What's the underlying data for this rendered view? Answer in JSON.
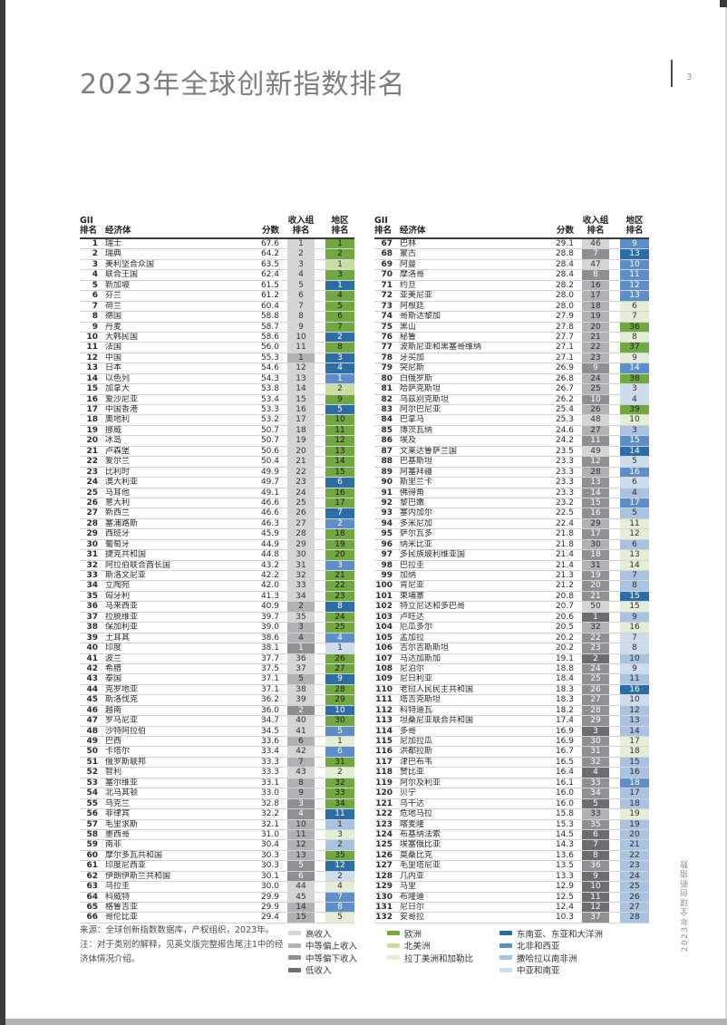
{
  "page": {
    "title": "2023年全球创新指数排名",
    "page_number": "3",
    "side_label": "2023年全球创新指数"
  },
  "table_headers": {
    "rank_line1": "GII",
    "rank_line2": "排名",
    "economy": "经济体",
    "score": "分数",
    "income_line1": "收入组",
    "income_line2": "排名",
    "region_line1": "地区",
    "region_line2": "排名"
  },
  "income_groups": {
    "high": {
      "label": "高收入",
      "color": "#d5d5d7",
      "text": "#333333"
    },
    "upper_middle": {
      "label": "中等偏上收入",
      "color": "#b1b1b5",
      "text": "#2e2e2e"
    },
    "lower_middle": {
      "label": "中等偏下收入",
      "color": "#8e8e94",
      "text": "#ffffff"
    },
    "low": {
      "label": "低收入",
      "color": "#6c6c73",
      "text": "#ffffff"
    }
  },
  "regions": {
    "EUR": {
      "label": "欧洲",
      "color": "#72a840",
      "text": "#1c1c1c"
    },
    "NAC": {
      "label": "北美洲",
      "color": "#c7dda3",
      "text": "#2e2e2e"
    },
    "LCN": {
      "label": "拉丁美洲和加勒比",
      "color": "#e3eed4",
      "text": "#2e2e2e"
    },
    "SEAO": {
      "label": "东南亚、东亚和大洋洲",
      "color": "#2d6da7",
      "text": "#ffffff"
    },
    "NAWA": {
      "label": "北非和西亚",
      "color": "#5d8ec7",
      "text": "#ffffff"
    },
    "SSF": {
      "label": "撒哈拉以南非洲",
      "color": "#a8c2e0",
      "text": "#2e2e2e"
    },
    "CSA": {
      "label": "中亚和南亚",
      "color": "#cfdcee",
      "text": "#2e2e2e"
    }
  },
  "legend": {
    "income_order": [
      "high",
      "upper_middle",
      "lower_middle",
      "low"
    ],
    "green_order": [
      "EUR",
      "NAC",
      "LCN"
    ],
    "blue_order": [
      "SEAO",
      "NAWA",
      "SSF",
      "CSA"
    ]
  },
  "footer": {
    "source": "来源：全球创新指数数据库，产权组织，2023年。",
    "note": "注：对于类别的解释，见英文版完整报告尾注1中的经济体情况介绍。"
  },
  "rows": [
    [
      1,
      "瑞士",
      "67.6",
      1,
      "high",
      1,
      "EUR"
    ],
    [
      2,
      "瑞典",
      "64.2",
      2,
      "high",
      2,
      "EUR"
    ],
    [
      3,
      "美利坚合众国",
      "63.5",
      3,
      "high",
      1,
      "NAC"
    ],
    [
      4,
      "联合王国",
      "62.4",
      4,
      "high",
      3,
      "EUR"
    ],
    [
      5,
      "新加坡",
      "61.5",
      5,
      "high",
      1,
      "SEAO"
    ],
    [
      6,
      "芬兰",
      "61.2",
      6,
      "high",
      4,
      "EUR"
    ],
    [
      7,
      "荷兰",
      "60.4",
      7,
      "high",
      5,
      "EUR"
    ],
    [
      8,
      "德国",
      "58.8",
      8,
      "high",
      6,
      "EUR"
    ],
    [
      9,
      "丹麦",
      "58.7",
      9,
      "high",
      7,
      "EUR"
    ],
    [
      10,
      "大韩民国",
      "58.6",
      10,
      "high",
      2,
      "SEAO"
    ],
    [
      11,
      "法国",
      "56.0",
      11,
      "high",
      8,
      "EUR"
    ],
    [
      12,
      "中国",
      "55.3",
      1,
      "upper_middle",
      3,
      "SEAO"
    ],
    [
      13,
      "日本",
      "54.6",
      12,
      "high",
      4,
      "SEAO"
    ],
    [
      14,
      "以色列",
      "54.3",
      13,
      "high",
      1,
      "NAWA"
    ],
    [
      15,
      "加拿大",
      "53.8",
      14,
      "high",
      2,
      "NAC"
    ],
    [
      16,
      "爱沙尼亚",
      "53.4",
      15,
      "high",
      9,
      "EUR"
    ],
    [
      17,
      "中国香港",
      "53.3",
      16,
      "high",
      5,
      "SEAO"
    ],
    [
      18,
      "奥地利",
      "53.2",
      17,
      "high",
      10,
      "EUR"
    ],
    [
      19,
      "挪威",
      "50.7",
      18,
      "high",
      11,
      "EUR"
    ],
    [
      20,
      "冰岛",
      "50.7",
      19,
      "high",
      12,
      "EUR"
    ],
    [
      21,
      "卢森堡",
      "50.6",
      20,
      "high",
      13,
      "EUR"
    ],
    [
      22,
      "爱尔兰",
      "50.4",
      21,
      "high",
      14,
      "EUR"
    ],
    [
      23,
      "比利时",
      "49.9",
      22,
      "high",
      15,
      "EUR"
    ],
    [
      24,
      "澳大利亚",
      "49.7",
      23,
      "high",
      6,
      "SEAO"
    ],
    [
      25,
      "马耳他",
      "49.1",
      24,
      "high",
      16,
      "EUR"
    ],
    [
      26,
      "意大利",
      "46.6",
      25,
      "high",
      17,
      "EUR"
    ],
    [
      27,
      "新西兰",
      "46.6",
      26,
      "high",
      7,
      "SEAO"
    ],
    [
      28,
      "塞浦路斯",
      "46.3",
      27,
      "high",
      2,
      "NAWA"
    ],
    [
      29,
      "西班牙",
      "45.9",
      28,
      "high",
      18,
      "EUR"
    ],
    [
      30,
      "葡萄牙",
      "44.9",
      29,
      "high",
      19,
      "EUR"
    ],
    [
      31,
      "捷克共和国",
      "44.8",
      30,
      "high",
      20,
      "EUR"
    ],
    [
      32,
      "阿拉伯联合酋长国",
      "43.2",
      31,
      "high",
      3,
      "NAWA"
    ],
    [
      33,
      "斯洛文尼亚",
      "42.2",
      32,
      "high",
      21,
      "EUR"
    ],
    [
      34,
      "立陶宛",
      "42.0",
      33,
      "high",
      22,
      "EUR"
    ],
    [
      35,
      "匈牙利",
      "41.3",
      34,
      "high",
      23,
      "EUR"
    ],
    [
      36,
      "马来西亚",
      "40.9",
      2,
      "upper_middle",
      8,
      "SEAO"
    ],
    [
      37,
      "拉脱维亚",
      "39.7",
      35,
      "high",
      24,
      "EUR"
    ],
    [
      38,
      "保加利亚",
      "39.0",
      3,
      "upper_middle",
      25,
      "EUR"
    ],
    [
      39,
      "土耳其",
      "38.6",
      4,
      "upper_middle",
      4,
      "NAWA"
    ],
    [
      40,
      "印度",
      "38.1",
      1,
      "lower_middle",
      1,
      "CSA"
    ],
    [
      41,
      "波兰",
      "37.7",
      36,
      "high",
      26,
      "EUR"
    ],
    [
      42,
      "希腊",
      "37.5",
      37,
      "high",
      27,
      "EUR"
    ],
    [
      43,
      "泰国",
      "37.1",
      5,
      "upper_middle",
      9,
      "SEAO"
    ],
    [
      44,
      "克罗地亚",
      "37.1",
      38,
      "high",
      28,
      "EUR"
    ],
    [
      45,
      "斯洛伐克",
      "36.2",
      39,
      "high",
      29,
      "EUR"
    ],
    [
      46,
      "越南",
      "36.0",
      2,
      "lower_middle",
      10,
      "SEAO"
    ],
    [
      47,
      "罗马尼亚",
      "34.7",
      40,
      "high",
      30,
      "EUR"
    ],
    [
      48,
      "沙特阿拉伯",
      "34.5",
      41,
      "high",
      5,
      "NAWA"
    ],
    [
      49,
      "巴西",
      "33.6",
      6,
      "upper_middle",
      1,
      "LCN"
    ],
    [
      50,
      "卡塔尔",
      "33.4",
      42,
      "high",
      6,
      "NAWA"
    ],
    [
      51,
      "俄罗斯联邦",
      "33.3",
      7,
      "upper_middle",
      31,
      "EUR"
    ],
    [
      52,
      "智利",
      "33.3",
      43,
      "high",
      2,
      "LCN"
    ],
    [
      53,
      "塞尔维亚",
      "33.1",
      8,
      "upper_middle",
      32,
      "EUR"
    ],
    [
      54,
      "北马其顿",
      "33.0",
      9,
      "upper_middle",
      33,
      "EUR"
    ],
    [
      55,
      "乌克兰",
      "32.8",
      3,
      "lower_middle",
      34,
      "EUR"
    ],
    [
      56,
      "菲律宾",
      "32.2",
      4,
      "lower_middle",
      11,
      "SEAO"
    ],
    [
      57,
      "毛里求斯",
      "32.1",
      10,
      "upper_middle",
      1,
      "SSF"
    ],
    [
      58,
      "墨西哥",
      "31.0",
      11,
      "upper_middle",
      3,
      "LCN"
    ],
    [
      59,
      "南非",
      "30.4",
      12,
      "upper_middle",
      2,
      "SSF"
    ],
    [
      60,
      "摩尔多瓦共和国",
      "30.3",
      13,
      "upper_middle",
      35,
      "EUR"
    ],
    [
      61,
      "印度尼西亚",
      "30.3",
      5,
      "lower_middle",
      12,
      "SEAO"
    ],
    [
      62,
      "伊朗伊斯兰共和国",
      "30.1",
      6,
      "lower_middle",
      2,
      "CSA"
    ],
    [
      63,
      "乌拉圭",
      "30.0",
      44,
      "high",
      4,
      "LCN"
    ],
    [
      64,
      "科威特",
      "29.9",
      45,
      "high",
      7,
      "NAWA"
    ],
    [
      65,
      "格鲁吉亚",
      "29.9",
      14,
      "upper_middle",
      8,
      "NAWA"
    ],
    [
      66,
      "哥伦比亚",
      "29.4",
      15,
      "upper_middle",
      5,
      "LCN"
    ],
    [
      67,
      "巴林",
      "29.1",
      46,
      "high",
      9,
      "NAWA"
    ],
    [
      68,
      "蒙古",
      "28.8",
      7,
      "lower_middle",
      13,
      "SEAO"
    ],
    [
      69,
      "阿曼",
      "28.4",
      47,
      "high",
      10,
      "NAWA"
    ],
    [
      70,
      "摩洛哥",
      "28.4",
      8,
      "lower_middle",
      11,
      "NAWA"
    ],
    [
      71,
      "约旦",
      "28.2",
      16,
      "upper_middle",
      12,
      "NAWA"
    ],
    [
      72,
      "亚美尼亚",
      "28.0",
      17,
      "upper_middle",
      13,
      "NAWA"
    ],
    [
      73,
      "阿根廷",
      "28.0",
      18,
      "upper_middle",
      6,
      "LCN"
    ],
    [
      74,
      "哥斯达黎加",
      "27.9",
      19,
      "upper_middle",
      7,
      "LCN"
    ],
    [
      75,
      "黑山",
      "27.8",
      20,
      "upper_middle",
      36,
      "EUR"
    ],
    [
      76,
      "秘鲁",
      "27.7",
      21,
      "upper_middle",
      8,
      "LCN"
    ],
    [
      77,
      "波斯尼亚和黑塞哥维纳",
      "27.1",
      22,
      "upper_middle",
      37,
      "EUR"
    ],
    [
      78,
      "牙买加",
      "27.1",
      23,
      "upper_middle",
      9,
      "LCN"
    ],
    [
      79,
      "突尼斯",
      "26.9",
      9,
      "lower_middle",
      14,
      "NAWA"
    ],
    [
      80,
      "白俄罗斯",
      "26.8",
      24,
      "upper_middle",
      38,
      "EUR"
    ],
    [
      81,
      "哈萨克斯坦",
      "26.7",
      25,
      "upper_middle",
      3,
      "CSA"
    ],
    [
      82,
      "乌兹别克斯坦",
      "26.2",
      10,
      "lower_middle",
      4,
      "CSA"
    ],
    [
      83,
      "阿尔巴尼亚",
      "25.4",
      26,
      "upper_middle",
      39,
      "EUR"
    ],
    [
      84,
      "巴拿马",
      "25.3",
      48,
      "high",
      10,
      "LCN"
    ],
    [
      85,
      "博茨瓦纳",
      "24.6",
      27,
      "upper_middle",
      3,
      "SSF"
    ],
    [
      86,
      "埃及",
      "24.2",
      11,
      "lower_middle",
      15,
      "NAWA"
    ],
    [
      87,
      "文莱达鲁萨兰国",
      "23.5",
      49,
      "high",
      14,
      "SEAO"
    ],
    [
      88,
      "巴基斯坦",
      "23.3",
      12,
      "lower_middle",
      5,
      "CSA"
    ],
    [
      89,
      "阿塞拜疆",
      "23.3",
      28,
      "upper_middle",
      16,
      "NAWA"
    ],
    [
      90,
      "斯里兰卡",
      "23.3",
      13,
      "lower_middle",
      6,
      "CSA"
    ],
    [
      91,
      "佛得角",
      "23.3",
      14,
      "lower_middle",
      4,
      "SSF"
    ],
    [
      92,
      "黎巴嫩",
      "23.2",
      15,
      "lower_middle",
      17,
      "NAWA"
    ],
    [
      93,
      "塞内加尔",
      "22.5",
      16,
      "lower_middle",
      5,
      "SSF"
    ],
    [
      94,
      "多米尼加",
      "22.4",
      29,
      "upper_middle",
      11,
      "LCN"
    ],
    [
      95,
      "萨尔瓦多",
      "21.8",
      17,
      "lower_middle",
      12,
      "LCN"
    ],
    [
      96,
      "纳米比亚",
      "21.8",
      30,
      "upper_middle",
      6,
      "SSF"
    ],
    [
      97,
      "多民族玻利维亚国",
      "21.4",
      18,
      "lower_middle",
      13,
      "LCN"
    ],
    [
      98,
      "巴拉圭",
      "21.4",
      31,
      "upper_middle",
      14,
      "LCN"
    ],
    [
      99,
      "加纳",
      "21.3",
      19,
      "lower_middle",
      7,
      "SSF"
    ],
    [
      100,
      "肯尼亚",
      "21.2",
      20,
      "lower_middle",
      8,
      "SSF"
    ],
    [
      101,
      "柬埔寨",
      "20.8",
      21,
      "lower_middle",
      15,
      "SEAO"
    ],
    [
      102,
      "特立尼达和多巴哥",
      "20.7",
      50,
      "high",
      15,
      "LCN"
    ],
    [
      103,
      "卢旺达",
      "20.6",
      1,
      "low",
      9,
      "SSF"
    ],
    [
      104,
      "厄瓜多尔",
      "20.5",
      32,
      "upper_middle",
      16,
      "LCN"
    ],
    [
      105,
      "孟加拉",
      "20.2",
      22,
      "lower_middle",
      7,
      "CSA"
    ],
    [
      106,
      "吉尔吉斯斯坦",
      "20.2",
      23,
      "lower_middle",
      8,
      "CSA"
    ],
    [
      107,
      "马达加斯加",
      "19.1",
      2,
      "low",
      10,
      "SSF"
    ],
    [
      108,
      "尼泊尔",
      "18.8",
      24,
      "lower_middle",
      9,
      "CSA"
    ],
    [
      109,
      "尼日利亚",
      "18.4",
      25,
      "lower_middle",
      11,
      "SSF"
    ],
    [
      110,
      "老挝人民民主共和国",
      "18.3",
      26,
      "lower_middle",
      16,
      "SEAO"
    ],
    [
      111,
      "塔吉克斯坦",
      "18.3",
      27,
      "lower_middle",
      10,
      "CSA"
    ],
    [
      112,
      "科特迪瓦",
      "18.2",
      28,
      "lower_middle",
      12,
      "SSF"
    ],
    [
      113,
      "坦桑尼亚联合共和国",
      "17.4",
      29,
      "lower_middle",
      13,
      "SSF"
    ],
    [
      114,
      "多哥",
      "16.9",
      3,
      "low",
      14,
      "SSF"
    ],
    [
      115,
      "尼加拉瓜",
      "16.9",
      30,
      "lower_middle",
      17,
      "LCN"
    ],
    [
      116,
      "洪都拉斯",
      "16.7",
      31,
      "lower_middle",
      18,
      "LCN"
    ],
    [
      117,
      "津巴布韦",
      "16.5",
      32,
      "lower_middle",
      15,
      "SSF"
    ],
    [
      118,
      "赞比亚",
      "16.4",
      4,
      "low",
      16,
      "SSF"
    ],
    [
      119,
      "阿尔及利亚",
      "16.1",
      33,
      "lower_middle",
      18,
      "NAWA"
    ],
    [
      120,
      "贝宁",
      "16.0",
      34,
      "lower_middle",
      17,
      "SSF"
    ],
    [
      121,
      "乌干达",
      "16.0",
      5,
      "low",
      18,
      "SSF"
    ],
    [
      122,
      "危地马拉",
      "15.8",
      33,
      "upper_middle",
      19,
      "LCN"
    ],
    [
      123,
      "喀麦隆",
      "15.3",
      35,
      "lower_middle",
      19,
      "SSF"
    ],
    [
      124,
      "布基纳法索",
      "14.5",
      6,
      "low",
      20,
      "SSF"
    ],
    [
      125,
      "埃塞俄比亚",
      "14.3",
      7,
      "low",
      21,
      "SSF"
    ],
    [
      126,
      "莫桑比克",
      "13.6",
      8,
      "low",
      22,
      "SSF"
    ],
    [
      127,
      "毛里塔尼亚",
      "13.5",
      36,
      "lower_middle",
      23,
      "SSF"
    ],
    [
      128,
      "几内亚",
      "13.3",
      9,
      "low",
      24,
      "SSF"
    ],
    [
      129,
      "马里",
      "12.9",
      10,
      "low",
      25,
      "SSF"
    ],
    [
      130,
      "布隆迪",
      "12.5",
      11,
      "low",
      26,
      "SSF"
    ],
    [
      131,
      "尼日尔",
      "12.4",
      12,
      "low",
      27,
      "SSF"
    ],
    [
      132,
      "安哥拉",
      "10.3",
      37,
      "lower_middle",
      28,
      "SSF"
    ]
  ]
}
